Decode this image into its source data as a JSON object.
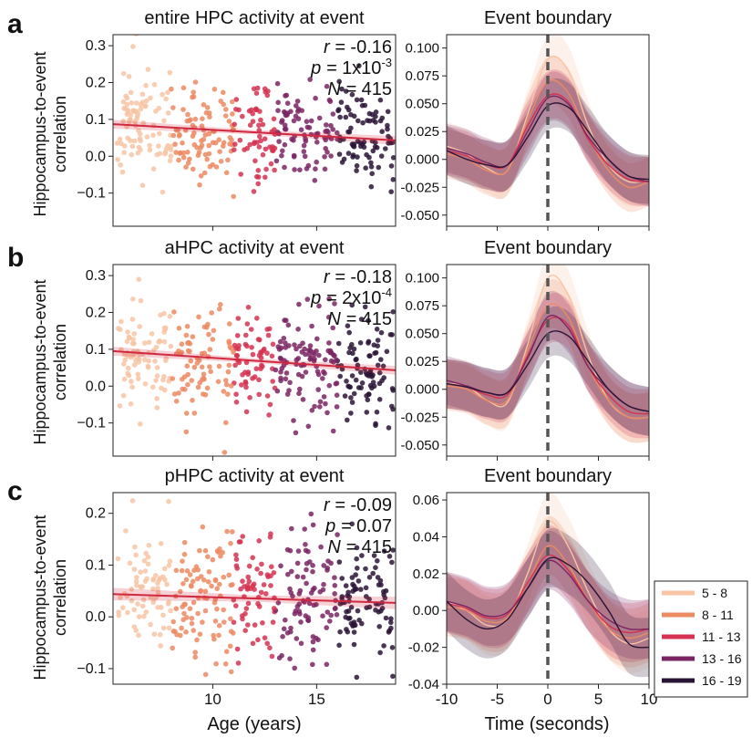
{
  "panel_letters": [
    "a",
    "b",
    "c"
  ],
  "shared": {
    "y_label_line1": "Hippocampus-to-event",
    "y_label_line2": "correlation",
    "x_label_left": "Age (years)",
    "x_label_right": "Time (seconds)"
  },
  "colors": {
    "age_5_8": "#f7c4a5",
    "age_8_11": "#ec8a62",
    "age_11_13": "#d53150",
    "age_13_16": "#7a2463",
    "age_16_19": "#2a1436",
    "fit_line": "#d0293f",
    "dashed_line": "#555555"
  },
  "legend": {
    "entries": [
      {
        "label": "5 - 8",
        "color": "#f7c4a5"
      },
      {
        "label": "8 - 11",
        "color": "#ec8a62"
      },
      {
        "label": "11 - 13",
        "color": "#d53150"
      },
      {
        "label": "13 - 16",
        "color": "#7a2463"
      },
      {
        "label": "16 - 19",
        "color": "#2a1436"
      }
    ]
  },
  "chart_data": [
    {
      "type": "scatter",
      "panel": "a",
      "title": "entire HPC activity at event",
      "xlabel": "",
      "ylabel": "Hippocampus-to-event correlation",
      "xlim": [
        5.2,
        18.8
      ],
      "ylim": [
        -0.19,
        0.33
      ],
      "xticks": [
        10,
        15
      ],
      "yticks": [
        -0.1,
        0.0,
        0.1,
        0.2,
        0.3
      ],
      "ytick_labels": [
        "−0.1",
        "0.0",
        "0.1",
        "0.2",
        "0.3"
      ],
      "stats": {
        "r": "-0.16",
        "p_base": "1x10",
        "p_exp": "-3",
        "n": "415"
      },
      "fit": {
        "x": [
          5.2,
          18.8
        ],
        "y": [
          0.087,
          0.043
        ]
      },
      "seed": 11,
      "spread": 0.07,
      "n_points": 415
    },
    {
      "type": "line",
      "panel": "a",
      "title": "Event boundary",
      "xlabel": "",
      "ylabel": "",
      "xlim": [
        -10,
        10
      ],
      "ylim": [
        -0.06,
        0.112
      ],
      "xticks": [
        -10,
        -5,
        0,
        5,
        10
      ],
      "yticks": [
        -0.05,
        -0.025,
        0.0,
        0.025,
        0.05,
        0.075,
        0.1
      ],
      "ytick_labels": [
        "-0.050",
        "-0.025",
        "0.000",
        "0.025",
        "0.050",
        "0.075",
        "0.100"
      ],
      "show_xticklabels": false,
      "x": [
        -10,
        -8,
        -6,
        -4,
        -2,
        0,
        2,
        4,
        6,
        8,
        10
      ],
      "band": 0.022,
      "series": [
        {
          "name": "5 - 8",
          "values": [
            0.012,
            0.005,
            -0.008,
            -0.01,
            0.04,
            0.09,
            0.08,
            0.03,
            -0.005,
            -0.02,
            -0.018
          ]
        },
        {
          "name": "8 - 11",
          "values": [
            0.005,
            0.0,
            -0.01,
            -0.01,
            0.035,
            0.07,
            0.06,
            0.02,
            -0.01,
            -0.025,
            -0.02
          ]
        },
        {
          "name": "11 - 13",
          "values": [
            0.008,
            0.003,
            -0.005,
            -0.005,
            0.03,
            0.057,
            0.052,
            0.018,
            -0.005,
            -0.018,
            -0.02
          ]
        },
        {
          "name": "13 - 16",
          "values": [
            0.01,
            0.005,
            -0.003,
            -0.005,
            0.025,
            0.055,
            0.05,
            0.02,
            0.0,
            -0.015,
            -0.02
          ]
        },
        {
          "name": "16 - 19",
          "values": [
            0.008,
            0.0,
            -0.005,
            -0.005,
            0.02,
            0.048,
            0.047,
            0.025,
            0.0,
            -0.015,
            -0.018
          ]
        }
      ]
    },
    {
      "type": "scatter",
      "panel": "b",
      "title": "aHPC activity at event",
      "xlabel": "",
      "ylabel": "Hippocampus-to-event correlation",
      "xlim": [
        5.2,
        18.8
      ],
      "ylim": [
        -0.19,
        0.33
      ],
      "xticks": [
        10,
        15
      ],
      "yticks": [
        -0.1,
        0.0,
        0.1,
        0.2,
        0.3
      ],
      "ytick_labels": [
        "−0.1",
        "0.0",
        "0.1",
        "0.2",
        "0.3"
      ],
      "stats": {
        "r": "-0.18",
        "p_base": "2x10",
        "p_exp": "-4",
        "n": "415"
      },
      "fit": {
        "x": [
          5.2,
          18.8
        ],
        "y": [
          0.095,
          0.043
        ]
      },
      "seed": 23,
      "spread": 0.07,
      "n_points": 415
    },
    {
      "type": "line",
      "panel": "b",
      "title": "Event boundary",
      "xlabel": "",
      "ylabel": "",
      "xlim": [
        -10,
        10
      ],
      "ylim": [
        -0.06,
        0.112
      ],
      "xticks": [
        -10,
        -5,
        0,
        5,
        10
      ],
      "yticks": [
        -0.05,
        -0.025,
        0.0,
        0.025,
        0.05,
        0.075,
        0.1
      ],
      "ytick_labels": [
        "-0.050",
        "-0.025",
        "0.000",
        "0.025",
        "0.050",
        "0.075",
        "0.100"
      ],
      "show_xticklabels": false,
      "x": [
        -10,
        -8,
        -6,
        -4,
        -2,
        0,
        2,
        4,
        6,
        8,
        10
      ],
      "band": 0.022,
      "series": [
        {
          "name": "5 - 8",
          "values": [
            0.005,
            0.003,
            -0.01,
            -0.012,
            0.04,
            0.1,
            0.085,
            0.03,
            -0.01,
            -0.025,
            -0.025
          ]
        },
        {
          "name": "8 - 11",
          "values": [
            0.003,
            0.0,
            -0.01,
            -0.01,
            0.035,
            0.075,
            0.065,
            0.02,
            -0.01,
            -0.025,
            -0.025
          ]
        },
        {
          "name": "11 - 13",
          "values": [
            0.005,
            0.002,
            -0.005,
            -0.005,
            0.03,
            0.062,
            0.058,
            0.02,
            -0.005,
            -0.02,
            -0.022
          ]
        },
        {
          "name": "13 - 16",
          "values": [
            0.008,
            0.003,
            -0.003,
            -0.003,
            0.028,
            0.065,
            0.055,
            0.02,
            0.0,
            -0.015,
            -0.02
          ]
        },
        {
          "name": "16 - 19",
          "values": [
            0.005,
            0.002,
            -0.003,
            -0.003,
            0.022,
            0.05,
            0.048,
            0.025,
            0.0,
            -0.015,
            -0.02
          ]
        }
      ]
    },
    {
      "type": "scatter",
      "panel": "c",
      "title": "pHPC activity at event",
      "xlabel": "Age (years)",
      "ylabel": "Hippocampus-to-event correlation",
      "xlim": [
        5.2,
        18.8
      ],
      "ylim": [
        -0.13,
        0.24
      ],
      "xticks": [
        10,
        15
      ],
      "yticks": [
        -0.1,
        0.0,
        0.1,
        0.2
      ],
      "ytick_labels": [
        "−0.1",
        "0.0",
        "0.1",
        "0.2"
      ],
      "stats": {
        "r": "-0.09",
        "p_base": "0.07",
        "p_exp": "",
        "n": "415"
      },
      "fit": {
        "x": [
          5.2,
          18.8
        ],
        "y": [
          0.044,
          0.027
        ]
      },
      "seed": 37,
      "spread": 0.06,
      "n_points": 415
    },
    {
      "type": "line",
      "panel": "c",
      "title": "Event boundary",
      "xlabel": "Time (seconds)",
      "ylabel": "",
      "xlim": [
        -10,
        10
      ],
      "ylim": [
        -0.04,
        0.064
      ],
      "xticks": [
        -10,
        -5,
        0,
        5,
        10
      ],
      "yticks": [
        -0.04,
        -0.02,
        0.0,
        0.02,
        0.04,
        0.06
      ],
      "ytick_labels": [
        "-0.04",
        "-0.02",
        "0.00",
        "0.02",
        "0.04",
        "0.06"
      ],
      "show_xticklabels": true,
      "x": [
        -10,
        -8,
        -6,
        -4,
        -2,
        0,
        2,
        4,
        6,
        8,
        10
      ],
      "band": 0.016,
      "series": [
        {
          "name": "5 - 8",
          "values": [
            0.005,
            0.0,
            -0.008,
            -0.005,
            0.02,
            0.048,
            0.035,
            0.01,
            -0.01,
            -0.018,
            -0.015
          ]
        },
        {
          "name": "8 - 11",
          "values": [
            0.002,
            0.0,
            -0.006,
            -0.004,
            0.015,
            0.035,
            0.025,
            0.005,
            -0.01,
            -0.015,
            -0.012
          ]
        },
        {
          "name": "11 - 13",
          "values": [
            0.004,
            0.001,
            -0.004,
            -0.002,
            0.015,
            0.03,
            0.022,
            0.005,
            -0.008,
            -0.012,
            -0.01
          ]
        },
        {
          "name": "13 - 16",
          "values": [
            0.005,
            0.002,
            -0.003,
            -0.001,
            0.012,
            0.027,
            0.02,
            0.005,
            -0.005,
            -0.01,
            -0.01
          ]
        },
        {
          "name": "16 - 19",
          "values": [
            0.005,
            -0.005,
            -0.01,
            -0.005,
            0.012,
            0.028,
            0.025,
            0.015,
            0.0,
            -0.018,
            -0.02
          ]
        }
      ]
    }
  ]
}
